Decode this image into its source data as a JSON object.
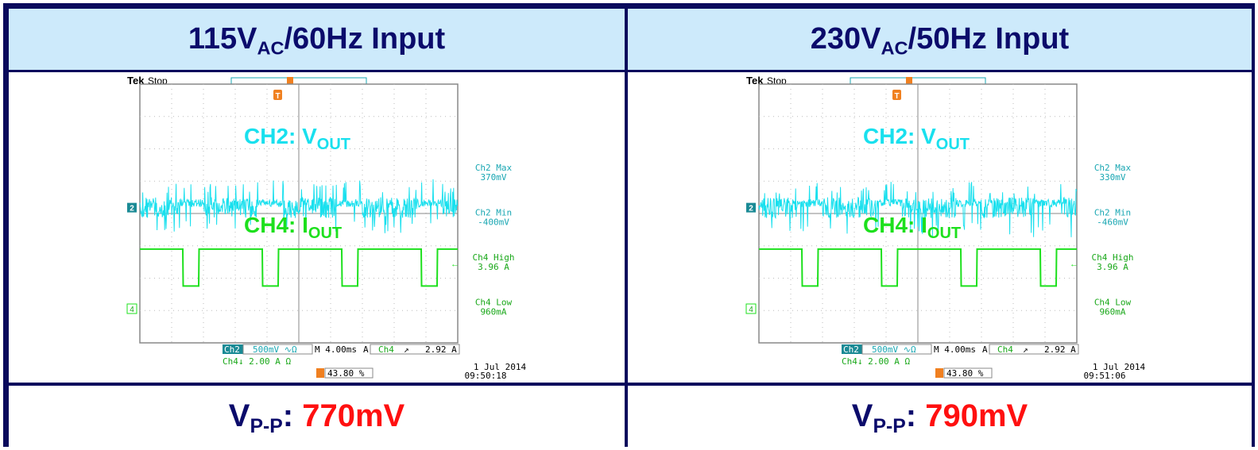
{
  "colors": {
    "border": "#0a0a5c",
    "header_bg": "#cdeafb",
    "title": "#0b0b6b",
    "value": "#ff1010",
    "ch2": "#19e0ee",
    "ch4": "#1de01d",
    "label_ch2": "#1aa7b3",
    "label_ch4": "#1aa81a"
  },
  "panels": [
    {
      "title_main": "115V",
      "title_sub": "AC",
      "title_rest": "/60Hz Input",
      "vpp_main": "V",
      "vpp_sub": "P-P",
      "vpp_colon": ":",
      "vpp_value": "770mV",
      "scope": {
        "brand": "Tek",
        "status": "Stop",
        "ch2_label_main": "CH2: V",
        "ch2_label_sub": "OUT",
        "ch4_label_main": "CH4: I",
        "ch4_label_sub": "OUT",
        "ch2_marker": "2",
        "ch4_marker": "4",
        "trigger_marker": "T",
        "measurements": [
          {
            "name": "Ch2 Max",
            "value": "370mV",
            "channel": "ch2"
          },
          {
            "name": "Ch2 Min",
            "value": "-400mV",
            "channel": "ch2"
          },
          {
            "name": "Ch4 High",
            "value": "3.96 A",
            "channel": "ch4"
          },
          {
            "name": "Ch4 Low",
            "value": "960mA",
            "channel": "ch4"
          }
        ],
        "ch2_setting_name": "Ch2",
        "ch2_setting": "500mV ∿Ω",
        "timebase": "M 4.00ms",
        "trigger_mode": "A",
        "trigger_channel": "Ch4",
        "trigger_slope": "↗",
        "trigger_level": "2.92 A",
        "ch4_setting": "Ch4↓ 2.00 A Ω",
        "trigger_position": "43.80 %",
        "date": "1 Jul  2014",
        "time": "09:50:18"
      }
    },
    {
      "title_main": "230V",
      "title_sub": "AC",
      "title_rest": "/50Hz Input",
      "vpp_main": "V",
      "vpp_sub": "P-P",
      "vpp_colon": ":",
      "vpp_value": "790mV",
      "scope": {
        "brand": "Tek",
        "status": "Stop",
        "ch2_label_main": "CH2: V",
        "ch2_label_sub": "OUT",
        "ch4_label_main": "CH4: I",
        "ch4_label_sub": "OUT",
        "ch2_marker": "2",
        "ch4_marker": "4",
        "trigger_marker": "T",
        "measurements": [
          {
            "name": "Ch2 Max",
            "value": "330mV",
            "channel": "ch2"
          },
          {
            "name": "Ch2 Min",
            "value": "-460mV",
            "channel": "ch2"
          },
          {
            "name": "Ch4 High",
            "value": "3.96 A",
            "channel": "ch4"
          },
          {
            "name": "Ch4 Low",
            "value": "960mA",
            "channel": "ch4"
          }
        ],
        "ch2_setting_name": "Ch2",
        "ch2_setting": "500mV ∿Ω",
        "timebase": "M 4.00ms",
        "trigger_mode": "A",
        "trigger_channel": "Ch4",
        "trigger_slope": "↗",
        "trigger_level": "2.92 A",
        "ch4_setting": "Ch4↓ 2.00 A Ω",
        "trigger_position": "43.80 %",
        "date": "1 Jul  2014",
        "time": "09:51:06"
      }
    }
  ],
  "chart_data": [
    {
      "type": "line",
      "grid": true,
      "xlim": [
        0,
        40
      ],
      "x_unit": "ms",
      "series": [
        {
          "name": "CH2: VOUT",
          "channel": "Ch2",
          "noise_max_mV": 370,
          "noise_min_mV": -400
        },
        {
          "name": "CH4: IOUT",
          "channel": "Ch4",
          "high_A": 3.96,
          "low_A": 0.96,
          "low_pulses_ms": [
            [
              5.4,
              7.4
            ],
            [
              15.4,
              17.4
            ],
            [
              25.4,
              27.4
            ],
            [
              35.4,
              37.4
            ]
          ]
        }
      ]
    },
    {
      "type": "line",
      "grid": true,
      "xlim": [
        0,
        40
      ],
      "x_unit": "ms",
      "series": [
        {
          "name": "CH2: VOUT",
          "channel": "Ch2",
          "noise_max_mV": 330,
          "noise_min_mV": -460
        },
        {
          "name": "CH4: IOUT",
          "channel": "Ch4",
          "high_A": 3.96,
          "low_A": 0.96,
          "low_pulses_ms": [
            [
              5.4,
              7.4
            ],
            [
              15.4,
              17.4
            ],
            [
              25.4,
              27.4
            ],
            [
              35.4,
              37.4
            ]
          ]
        }
      ]
    }
  ]
}
